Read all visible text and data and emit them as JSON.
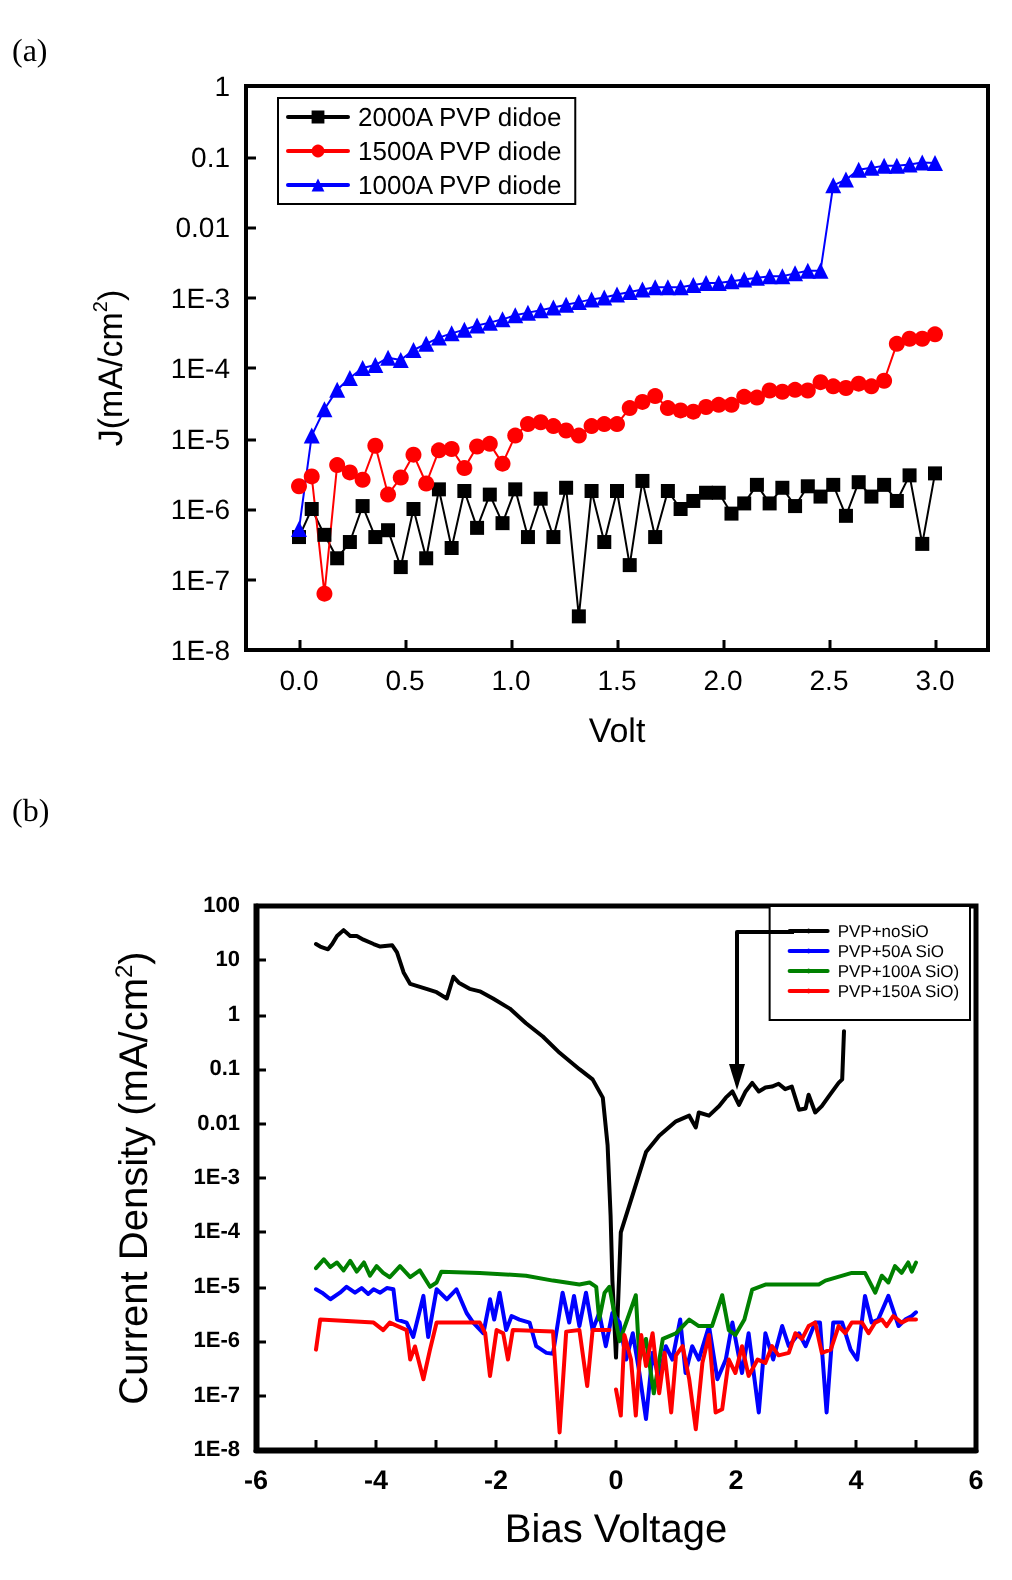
{
  "chart_data": [
    {
      "type": "line",
      "title": "(a)",
      "xlabel": "Volt",
      "ylabel": "J(mA/cm$^{2}$)",
      "log": "y",
      "legend": "top left",
      "xlim": [
        -0.25,
        3.25
      ],
      "xticks": [
        {
          "value": 0,
          "label": "0.0"
        },
        0.5,
        {
          "value": 1,
          "label": "1.0"
        },
        1.5,
        {
          "value": 2,
          "label": "2.0"
        },
        2.5,
        {
          "value": 3,
          "label": "3.0"
        }
      ],
      "ylim": [
        1e-08,
        1
      ],
      "yticks": [
        {
          "value": 1e-08,
          "label": "1E-8"
        },
        {
          "value": 1e-07,
          "label": "1E-7"
        },
        {
          "value": 1e-06,
          "label": "1E-6"
        },
        {
          "value": 1e-05,
          "label": "1E-5"
        },
        {
          "value": 0.0001,
          "label": "1E-4"
        },
        {
          "value": 0.001,
          "label": "1E-3"
        },
        0.01,
        0.1,
        1
      ],
      "x": [
        0,
        0.06,
        0.12,
        0.18,
        0.24,
        0.3,
        0.36,
        0.42,
        0.48,
        0.54,
        0.6,
        0.66,
        0.72,
        0.78,
        0.84,
        0.9,
        0.96,
        1.02,
        1.08,
        1.14,
        1.2,
        1.26,
        1.32,
        1.38,
        1.44,
        1.5,
        1.56,
        1.62,
        1.68,
        1.74,
        1.8,
        1.86,
        1.92,
        1.98,
        2.04,
        2.1,
        2.16,
        2.22,
        2.28,
        2.34,
        2.4,
        2.46,
        2.52,
        2.58,
        2.64,
        2.7,
        2.76,
        2.82,
        2.88,
        2.94,
        3
      ],
      "series": [
        {
          "name": "2000A PVP didoe",
          "color": "#000000",
          "marker": "square",
          "values": [
            4e-07,
            1e-06,
            4.3e-07,
            2e-07,
            3.4e-07,
            1.1e-06,
            4e-07,
            5e-07,
            1.5e-07,
            1e-06,
            2e-07,
            1.9e-06,
            2.8e-07,
            1.8e-06,
            5.4e-07,
            1.6e-06,
            6.3e-07,
            1.9e-06,
            4e-07,
            1.4e-06,
            4e-07,
            2e-06,
            3e-08,
            1.8e-06,
            3.4e-07,
            1.8e-06,
            1.6e-07,
            2.5e-06,
            4e-07,
            1.8e-06,
            1e-06,
            1.3e-06,
            1.7e-06,
            1.7e-06,
            8.6e-07,
            1.2e-06,
            2.2e-06,
            1.2e-06,
            2e-06,
            1.1e-06,
            2.1e-06,
            1.5e-06,
            2.2e-06,
            8e-07,
            2.4e-06,
            1.5e-06,
            2.2e-06,
            1.3e-06,
            3e-06,
            3.2e-07,
            3.2e-06
          ]
        },
        {
          "name": "1500A PVP diode",
          "color": "#ff0000",
          "marker": "circle",
          "values": [
            2.1e-06,
            2.9e-06,
            6.3e-08,
            4.2e-06,
            3.3e-06,
            2.6e-06,
            7.9e-06,
            1.6e-06,
            2.8e-06,
            5.9e-06,
            2.3e-06,
            6.8e-06,
            7.1e-06,
            3.8e-06,
            7.7e-06,
            8.4e-06,
            4.4e-06,
            1.1e-05,
            1.6e-05,
            1.7e-05,
            1.5e-05,
            1.3e-05,
            1.1e-05,
            1.5e-05,
            1.6e-05,
            1.6e-05,
            2.7e-05,
            3.3e-05,
            4e-05,
            2.7e-05,
            2.5e-05,
            2.4e-05,
            2.8e-05,
            3e-05,
            3e-05,
            3.9e-05,
            3.8e-05,
            4.8e-05,
            4.6e-05,
            4.9e-05,
            4.8e-05,
            6.3e-05,
            5.5e-05,
            5.2e-05,
            6e-05,
            5.5e-05,
            6.6e-05,
            0.00022,
            0.00026,
            0.00026,
            0.0003
          ]
        },
        {
          "name": "1000A PVP diode",
          "color": "#0000ff",
          "marker": "triangle",
          "values": [
            5.2e-07,
            1.1e-05,
            2.6e-05,
            4.9e-05,
            7.2e-05,
            0.0001,
            0.00011,
            0.00014,
            0.00013,
            0.00018,
            0.00022,
            0.00027,
            0.00031,
            0.00035,
            0.0004,
            0.00044,
            0.00049,
            0.00056,
            0.00061,
            0.00066,
            0.00072,
            0.00079,
            0.00086,
            0.00094,
            0.001,
            0.0011,
            0.0012,
            0.0013,
            0.0014,
            0.0014,
            0.0014,
            0.0015,
            0.0016,
            0.0016,
            0.0017,
            0.0018,
            0.0019,
            0.002,
            0.002,
            0.0022,
            0.0024,
            0.0024,
            0.039,
            0.047,
            0.065,
            0.069,
            0.074,
            0.074,
            0.077,
            0.082,
            0.081
          ]
        }
      ]
    },
    {
      "type": "line",
      "title": "(b)",
      "xlabel": "Bias Voltage",
      "ylabel": "Current Density (mA/cm$^{2}$)",
      "log": "y",
      "legend": "top right",
      "marker": "none",
      "xlim": [
        -6,
        6
      ],
      "xticks": [
        -6,
        {
          "value": -5,
          "label": null
        },
        -4,
        {
          "value": -3,
          "label": null
        },
        -2,
        {
          "value": -1,
          "label": null
        },
        0,
        {
          "value": 1,
          "label": null
        },
        2,
        {
          "value": 3,
          "label": null
        },
        4,
        {
          "value": 5,
          "label": null
        },
        6
      ],
      "ylim": [
        1e-08,
        100
      ],
      "yticks": [
        {
          "value": 1e-08,
          "label": "1E-8"
        },
        {
          "value": 1e-07,
          "label": "1E-7"
        },
        {
          "value": 1e-06,
          "label": "1E-6"
        },
        {
          "value": 1e-05,
          "label": "1E-5"
        },
        {
          "value": 0.0001,
          "label": "1E-4"
        },
        {
          "value": 0.001,
          "label": "1E-3"
        },
        0.01,
        0.1,
        1,
        10,
        100
      ],
      "series": [
        {
          "name": "PVP+noSiO",
          "color": "#000000",
          "x": [
            -5,
            -4.93,
            -4.8,
            -4.73,
            -4.65,
            -4.54,
            -4.43,
            -4.32,
            -4.21,
            -4.04,
            -3.93,
            -3.73,
            -3.65,
            -3.54,
            -3.43,
            -3.16,
            -2.99,
            -2.82,
            -2.71,
            -2.62,
            -2.44,
            -2.27,
            -2.05,
            -1.77,
            -1.5,
            -1.22,
            -0.94,
            -0.61,
            -0.39,
            -0.22,
            -0.14,
            -0.09,
            -0.06,
            0,
            0.08,
            0.28,
            0.5,
            0.72,
            1,
            1.22,
            1.33,
            1.38,
            1.55,
            1.72,
            1.83,
            1.94,
            2.05,
            2.16,
            2.27,
            2.38,
            2.49,
            2.6,
            2.71,
            2.82,
            2.93,
            3.05,
            3.16,
            3.21,
            3.32,
            3.43,
            3.54,
            3.71,
            3.77,
            3.8
          ],
          "values": [
            20,
            18,
            16,
            20,
            28,
            36,
            28,
            28,
            24,
            20,
            18,
            19,
            14,
            6,
            3.7,
            3,
            2.6,
            2,
            5,
            3.9,
            3,
            2.7,
            2,
            1.3,
            0.7,
            0.4,
            0.2,
            0.1,
            0.065,
            0.03,
            0.004,
            0.0002,
            1.3e-05,
            5e-07,
            0.0001,
            0.0005,
            0.003,
            0.006,
            0.011,
            0.014,
            0.0085,
            0.016,
            0.014,
            0.021,
            0.03,
            0.039,
            0.022,
            0.039,
            0.056,
            0.039,
            0.046,
            0.048,
            0.054,
            0.043,
            0.048,
            0.018,
            0.019,
            0.034,
            0.016,
            0.021,
            0.031,
            0.056,
            0.065,
            0.5
          ]
        },
        {
          "name": "PVP+50A SiO",
          "color": "#0000ff",
          "x": [
            -5,
            -4.9,
            -4.76,
            -4.6,
            -4.49,
            -4.35,
            -4.24,
            -4.13,
            -4.04,
            -3.93,
            -3.82,
            -3.71,
            -3.65,
            -3.49,
            -3.38,
            -3.21,
            -3.13,
            -2.99,
            -2.82,
            -2.66,
            -2.49,
            -2.38,
            -2.21,
            -2.1,
            -2.03,
            -1.94,
            -1.83,
            -1.74,
            -1.61,
            -1.44,
            -1.33,
            -1.16,
            -1.05,
            -0.96,
            -0.89,
            -0.78,
            -0.7,
            -0.61,
            -0.5,
            -0.39,
            -0.28,
            -0.17,
            -0.06,
            0.06,
            0.17,
            0.28,
            0.39,
            0.5,
            0.61,
            0.72,
            0.83,
            0.94,
            1.07,
            1.16,
            1.27,
            1.38,
            1.55,
            1.69,
            1.83,
            1.94,
            2.1,
            2.21,
            2.38,
            2.49,
            2.62,
            2.77,
            2.88,
            3.05,
            3.16,
            3.32,
            3.4,
            3.51,
            3.62,
            3.77,
            3.91,
            4.02,
            4.15,
            4.26,
            4.37,
            4.54,
            4.71,
            4.82,
            4.93,
            5
          ],
          "values": [
            9e-06,
            7.8e-06,
            5.9e-06,
            7.8e-06,
            1e-05,
            7.8e-06,
            9.5e-06,
            7.4e-06,
            9e-06,
            7.8e-06,
            9.5e-06,
            9e-06,
            2.5e-06,
            2.2e-06,
            1.2e-06,
            6.8e-06,
            1.2e-06,
            9e-06,
            5.9e-06,
            9e-06,
            3.3e-06,
            2.2e-06,
            1.4e-06,
            5.9e-06,
            2.5e-06,
            7.8e-06,
            1.6e-06,
            2.9e-06,
            2.5e-06,
            2.2e-06,
            8.1e-07,
            6.1e-07,
            5.9e-07,
            2.5e-06,
            7.8e-06,
            2.2e-06,
            6.8e-06,
            1.9e-06,
            7.8e-06,
            1.6e-06,
            3.3e-06,
            8.1e-07,
            3.3e-06,
            2.2e-06,
            4.6e-07,
            1.4e-06,
            2.6e-07,
            3.7e-08,
            6.1e-07,
            2e-07,
            8.1e-07,
            4.6e-07,
            2.5e-06,
            2.6e-07,
            8.1e-07,
            4.6e-07,
            1.9e-06,
            2e-07,
            4.6e-07,
            2.2e-06,
            2.6e-07,
            1.4e-06,
            4.9e-08,
            1.4e-06,
            4.6e-07,
            1.9e-06,
            8.1e-07,
            1.4e-06,
            8.1e-07,
            2.2e-06,
            2.2e-06,
            4.9e-08,
            2.2e-06,
            2.2e-06,
            7e-07,
            4.6e-07,
            6.8e-06,
            2.2e-06,
            2.5e-06,
            6.8e-06,
            1.9e-06,
            2.5e-06,
            2.9e-06,
            3.4e-06
          ]
        },
        {
          "name": "PVP+100A SiO)",
          "color": "#008000",
          "x": [
            -5,
            -4.87,
            -4.76,
            -4.65,
            -4.54,
            -4.43,
            -4.32,
            -4.2,
            -4.1,
            -3.99,
            -3.88,
            -3.77,
            -3.6,
            -3.43,
            -3.27,
            -3.1,
            -2.99,
            -2.91,
            -2.27,
            -1.5,
            -1.05,
            -0.61,
            -0.44,
            -0.33,
            -0.28,
            -0.19,
            -0.11,
            0.06,
            0.33,
            0.39,
            0.5,
            0.63,
            0.78,
            1,
            1.22,
            1.38,
            1.6,
            1.77,
            1.88,
            1.99,
            2.14,
            2.27,
            2.49,
            3.38,
            3.49,
            3.93,
            4.15,
            4.32,
            4.43,
            4.54,
            4.65,
            4.76,
            4.87,
            4.93,
            5
          ],
          "values": [
            2.2e-05,
            3.2e-05,
            2.3e-05,
            2.8e-05,
            2e-05,
            3e-05,
            1.9e-05,
            2.8e-05,
            1.6e-05,
            2.4e-05,
            1.8e-05,
            1.5e-05,
            2.4e-05,
            1.5e-05,
            2e-05,
            1e-05,
            1.2e-05,
            1.9e-05,
            1.8e-05,
            1.6e-05,
            1.3e-05,
            1.1e-05,
            1.2e-05,
            1e-05,
            2.5e-06,
            7.8e-06,
            1e-05,
            1e-06,
            7e-06,
            4.6e-07,
            1.1e-06,
            1.1e-07,
            1.1e-06,
            1.4e-06,
            2.5e-06,
            1.9e-06,
            1.9e-06,
            7e-06,
            1.6e-06,
            1.3e-06,
            2.5e-06,
            8.9e-06,
            1.1e-05,
            1.1e-05,
            1.3e-05,
            1.8e-05,
            1.8e-05,
            7.8e-06,
            1.6e-05,
            1.2e-05,
            2.4e-05,
            1.8e-05,
            2.8e-05,
            1.9e-05,
            2.8e-05
          ]
        },
        {
          "name": "PVP+150A SiO)",
          "color": "#ff0000",
          "x": [
            -5,
            -4.93,
            -4.04,
            -3.88,
            -3.77,
            -3.49,
            -3.43,
            -3.35,
            -3.21,
            -3.1,
            -2.99,
            -2.27,
            -2.18,
            -2.1,
            -1.99,
            -1.88,
            -1.8,
            -1.72,
            -1.05,
            -0.94,
            -0.83,
            -0.61,
            -0.48,
            -0.39,
            -0.11,
            -0.05,
            0,
            0.08,
            0.14,
            0.25,
            0.33,
            0.42,
            0.5,
            0.61,
            0.72,
            0.81,
            0.92,
            1,
            1.11,
            1.22,
            1.33,
            1.44,
            1.55,
            1.66,
            1.77,
            1.88,
            1.99,
            2.1,
            2.21,
            2.36,
            2.49,
            2.6,
            2.71,
            2.88,
            2.99,
            3.1,
            3.21,
            3.32,
            3.43,
            3.58,
            3.71,
            3.82,
            3.93,
            4.1,
            4.21,
            4.32,
            4.43,
            4.51,
            4.62,
            4.76,
            4.87,
            5
          ],
          "values": [
            7e-07,
            2.5e-06,
            2.2e-06,
            1.6e-06,
            2.2e-06,
            1.6e-06,
            4.6e-07,
            8e-07,
            2e-07,
            7e-07,
            2.2e-06,
            2.2e-06,
            1.4e-06,
            2.3e-07,
            1.6e-06,
            1.4e-06,
            4.6e-07,
            1.6e-06,
            1.5e-06,
            2.1e-08,
            1.5e-06,
            1.6e-06,
            1.5e-07,
            1.6e-06,
            1.6e-06,
            null,
            1.3e-07,
            4.3e-08,
            1.3e-06,
            4.6e-07,
            4.3e-08,
            1.3e-06,
            3.5e-07,
            1.4e-06,
            1.1e-07,
            6.1e-07,
            4.9e-08,
            5.5e-07,
            8.1e-07,
            2e-07,
            2.4e-08,
            4e-07,
            1.3e-06,
            4.9e-08,
            5.6e-08,
            4.6e-07,
            2.6e-07,
            8.1e-07,
            2.3e-07,
            4.6e-07,
            4e-07,
            8.1e-07,
            5.5e-07,
            6.1e-07,
            1.4e-06,
            1.1e-06,
            1.9e-06,
            2.2e-06,
            6.1e-07,
            7e-07,
            1.9e-06,
            1.4e-06,
            2.2e-06,
            2.2e-06,
            1.4e-06,
            2.2e-06,
            2.5e-06,
            1.9e-06,
            2.9e-06,
            2.2e-06,
            2.5e-06,
            2.5e-06
          ]
        }
      ]
    }
  ]
}
